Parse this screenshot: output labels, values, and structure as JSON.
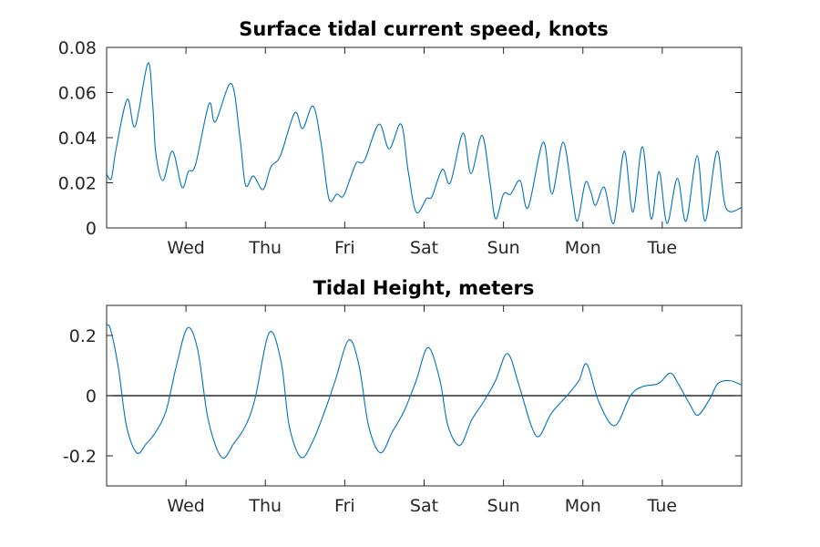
{
  "colors": {
    "line": "#0072BD",
    "axis": "#262626",
    "zero_line": "#000000",
    "background": "#ffffff"
  },
  "chart_data": [
    {
      "type": "line",
      "title": "Surface tidal current speed, knots",
      "xlabel": "",
      "ylabel": "",
      "x_unit": "days",
      "xlim": [
        0,
        8
      ],
      "ylim": [
        0,
        0.08
      ],
      "grid": false,
      "x_ticks": [
        {
          "value": 1,
          "label": "Wed"
        },
        {
          "value": 2,
          "label": "Thu"
        },
        {
          "value": 3,
          "label": "Fri"
        },
        {
          "value": 4,
          "label": "Sat"
        },
        {
          "value": 5,
          "label": "Sun"
        },
        {
          "value": 6,
          "label": "Mon"
        },
        {
          "value": 7,
          "label": "Tue"
        }
      ],
      "y_ticks": [
        {
          "value": 0,
          "label": "0"
        },
        {
          "value": 0.02,
          "label": "0.02"
        },
        {
          "value": 0.04,
          "label": "0.04"
        },
        {
          "value": 0.06,
          "label": "0.06"
        },
        {
          "value": 0.08,
          "label": "0.08"
        }
      ],
      "series": [
        {
          "points": [
            [
              0.0,
              0.024
            ],
            [
              0.06,
              0.022
            ],
            [
              0.12,
              0.035
            ],
            [
              0.26,
              0.057
            ],
            [
              0.36,
              0.045
            ],
            [
              0.52,
              0.073
            ],
            [
              0.58,
              0.055
            ],
            [
              0.62,
              0.033
            ],
            [
              0.71,
              0.021
            ],
            [
              0.83,
              0.034
            ],
            [
              0.95,
              0.018
            ],
            [
              1.03,
              0.025
            ],
            [
              1.12,
              0.028
            ],
            [
              1.29,
              0.055
            ],
            [
              1.37,
              0.047
            ],
            [
              1.57,
              0.064
            ],
            [
              1.68,
              0.04
            ],
            [
              1.75,
              0.019
            ],
            [
              1.85,
              0.023
            ],
            [
              1.97,
              0.017
            ],
            [
              2.07,
              0.027
            ],
            [
              2.19,
              0.032
            ],
            [
              2.37,
              0.051
            ],
            [
              2.47,
              0.044
            ],
            [
              2.6,
              0.054
            ],
            [
              2.7,
              0.038
            ],
            [
              2.8,
              0.013
            ],
            [
              2.9,
              0.015
            ],
            [
              2.98,
              0.014
            ],
            [
              3.08,
              0.023
            ],
            [
              3.15,
              0.029
            ],
            [
              3.25,
              0.03
            ],
            [
              3.43,
              0.046
            ],
            [
              3.56,
              0.035
            ],
            [
              3.71,
              0.046
            ],
            [
              3.8,
              0.025
            ],
            [
              3.9,
              0.007
            ],
            [
              4.03,
              0.013
            ],
            [
              4.1,
              0.014
            ],
            [
              4.23,
              0.026
            ],
            [
              4.33,
              0.02
            ],
            [
              4.49,
              0.042
            ],
            [
              4.59,
              0.024
            ],
            [
              4.73,
              0.041
            ],
            [
              4.83,
              0.02
            ],
            [
              4.9,
              0.004
            ],
            [
              5.0,
              0.015
            ],
            [
              5.09,
              0.015
            ],
            [
              5.21,
              0.021
            ],
            [
              5.31,
              0.009
            ],
            [
              5.5,
              0.038
            ],
            [
              5.61,
              0.015
            ],
            [
              5.75,
              0.038
            ],
            [
              5.86,
              0.016
            ],
            [
              5.93,
              0.003
            ],
            [
              6.03,
              0.02
            ],
            [
              6.1,
              0.016
            ],
            [
              6.16,
              0.01
            ],
            [
              6.27,
              0.018
            ],
            [
              6.39,
              0.002
            ],
            [
              6.52,
              0.034
            ],
            [
              6.63,
              0.007
            ],
            [
              6.75,
              0.036
            ],
            [
              6.86,
              0.004
            ],
            [
              6.96,
              0.025
            ],
            [
              7.06,
              0.002
            ],
            [
              7.19,
              0.022
            ],
            [
              7.3,
              0.003
            ],
            [
              7.44,
              0.032
            ],
            [
              7.54,
              0.003
            ],
            [
              7.69,
              0.034
            ],
            [
              7.8,
              0.009
            ],
            [
              8.0,
              0.009
            ]
          ]
        }
      ]
    },
    {
      "type": "line",
      "title": "Tidal Height, meters",
      "xlabel": "",
      "ylabel": "",
      "x_unit": "days",
      "xlim": [
        0,
        8
      ],
      "ylim": [
        -0.3,
        0.3
      ],
      "grid": false,
      "reference_line_y": 0,
      "x_ticks": [
        {
          "value": 1,
          "label": "Wed"
        },
        {
          "value": 2,
          "label": "Thu"
        },
        {
          "value": 3,
          "label": "Fri"
        },
        {
          "value": 4,
          "label": "Sat"
        },
        {
          "value": 5,
          "label": "Sun"
        },
        {
          "value": 6,
          "label": "Mon"
        },
        {
          "value": 7,
          "label": "Tue"
        }
      ],
      "y_ticks": [
        {
          "value": -0.2,
          "label": "-0.2"
        },
        {
          "value": 0,
          "label": "0"
        },
        {
          "value": 0.2,
          "label": "0.2"
        }
      ],
      "series": [
        {
          "points": [
            [
              0.0,
              0.235
            ],
            [
              0.05,
              0.22
            ],
            [
              0.15,
              0.09
            ],
            [
              0.25,
              -0.1
            ],
            [
              0.38,
              -0.19
            ],
            [
              0.5,
              -0.16
            ],
            [
              0.62,
              -0.12
            ],
            [
              0.75,
              -0.05
            ],
            [
              0.88,
              0.1
            ],
            [
              1.02,
              0.225
            ],
            [
              1.15,
              0.15
            ],
            [
              1.28,
              -0.08
            ],
            [
              1.45,
              -0.205
            ],
            [
              1.6,
              -0.16
            ],
            [
              1.75,
              -0.1
            ],
            [
              1.87,
              -0.01
            ],
            [
              2.05,
              0.21
            ],
            [
              2.2,
              0.11
            ],
            [
              2.3,
              -0.1
            ],
            [
              2.45,
              -0.205
            ],
            [
              2.6,
              -0.15
            ],
            [
              2.75,
              -0.05
            ],
            [
              2.88,
              0.05
            ],
            [
              3.05,
              0.185
            ],
            [
              3.18,
              0.1
            ],
            [
              3.3,
              -0.1
            ],
            [
              3.45,
              -0.19
            ],
            [
              3.6,
              -0.12
            ],
            [
              3.75,
              -0.05
            ],
            [
              3.9,
              0.05
            ],
            [
              4.05,
              0.16
            ],
            [
              4.2,
              0.05
            ],
            [
              4.3,
              -0.1
            ],
            [
              4.45,
              -0.165
            ],
            [
              4.6,
              -0.08
            ],
            [
              4.75,
              -0.02
            ],
            [
              4.9,
              0.05
            ],
            [
              5.05,
              0.14
            ],
            [
              5.2,
              0.03
            ],
            [
              5.35,
              -0.1
            ],
            [
              5.45,
              -0.135
            ],
            [
              5.6,
              -0.06
            ],
            [
              5.8,
              0.0
            ],
            [
              5.95,
              0.05
            ],
            [
              6.05,
              0.105
            ],
            [
              6.2,
              -0.02
            ],
            [
              6.4,
              -0.1
            ],
            [
              6.6,
              0.0
            ],
            [
              6.75,
              0.03
            ],
            [
              6.95,
              0.04
            ],
            [
              7.1,
              0.075
            ],
            [
              7.2,
              0.04
            ],
            [
              7.35,
              -0.03
            ],
            [
              7.45,
              -0.065
            ],
            [
              7.6,
              -0.01
            ],
            [
              7.7,
              0.04
            ],
            [
              7.85,
              0.05
            ],
            [
              8.0,
              0.035
            ]
          ]
        }
      ]
    }
  ]
}
